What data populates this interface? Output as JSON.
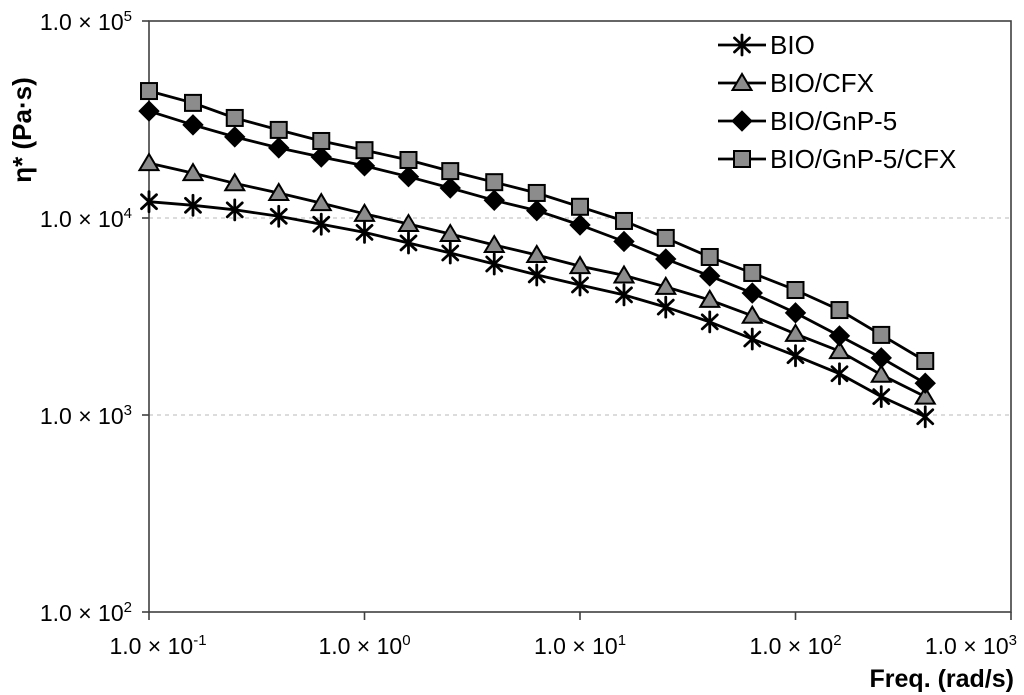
{
  "figure": {
    "background": "#ffffff"
  },
  "chart_data": {
    "type": "line",
    "title": "",
    "xlabel": "Freq. (rad/s)",
    "ylabel": "η* (Pa·s)",
    "x_scale": "log",
    "y_scale": "log",
    "xlim": [
      0.1,
      1000
    ],
    "ylim": [
      100,
      100000
    ],
    "grid": "horizontal-dashed-at-decades",
    "gridline_y_values": [
      10000,
      1000
    ],
    "x_ticks": [
      {
        "mantissa": "1.0 × 10",
        "exp": "-1",
        "value": 0.1
      },
      {
        "mantissa": "1.0 × 10",
        "exp": "0",
        "value": 1
      },
      {
        "mantissa": "1.0 × 10",
        "exp": "1",
        "value": 10
      },
      {
        "mantissa": "1.0 × 10",
        "exp": "2",
        "value": 100
      },
      {
        "mantissa": "1.0 × 10",
        "exp": "3",
        "value": 1000
      }
    ],
    "y_ticks": [
      {
        "mantissa": "1.0 × 10",
        "exp": "5",
        "value": 100000
      },
      {
        "mantissa": "1.0 × 10",
        "exp": "4",
        "value": 10000
      },
      {
        "mantissa": "1.0 × 10",
        "exp": "3",
        "value": 1000
      },
      {
        "mantissa": "1.0 × 10",
        "exp": "2",
        "value": 100
      }
    ],
    "legend": {
      "position": "top-right",
      "border": false,
      "entries": [
        "BIO",
        "BIO/CFX",
        "BIO/GnP-5",
        "BIO/GnP-5/CFX"
      ]
    },
    "x": [
      0.1,
      0.16,
      0.25,
      0.4,
      0.63,
      1,
      1.6,
      2.5,
      4,
      6.3,
      10,
      16,
      25,
      40,
      63,
      100,
      160,
      250,
      400
    ],
    "series": [
      {
        "name": "BIO",
        "marker": "asterisk",
        "marker_color": "#000000",
        "line_color": "#000000",
        "values": [
          12100,
          11600,
          11000,
          10200,
          9300,
          8450,
          7470,
          6640,
          5840,
          5140,
          4570,
          4070,
          3530,
          2970,
          2430,
          2000,
          1620,
          1240,
          980
        ]
      },
      {
        "name": "BIO/CFX",
        "marker": "triangle",
        "marker_color": "#8c8c8c",
        "line_color": "#000000",
        "values": [
          19000,
          16900,
          15000,
          13400,
          11900,
          10500,
          9320,
          8290,
          7290,
          6490,
          5700,
          5110,
          4470,
          3840,
          3190,
          2580,
          2110,
          1600,
          1240
        ]
      },
      {
        "name": "BIO/GnP-5",
        "marker": "diamond",
        "marker_color": "#000000",
        "line_color": "#000000",
        "values": [
          34900,
          29700,
          25800,
          22700,
          20400,
          18400,
          16200,
          14200,
          12300,
          10900,
          9210,
          7600,
          6190,
          5080,
          4160,
          3300,
          2520,
          1950,
          1450
        ]
      },
      {
        "name": "BIO/GnP-5/CFX",
        "marker": "square",
        "marker_color": "#8c8c8c",
        "line_color": "#000000",
        "values": [
          44100,
          38400,
          32200,
          28000,
          24600,
          22100,
          19700,
          17300,
          15200,
          13400,
          11400,
          9660,
          7920,
          6340,
          5260,
          4310,
          3410,
          2550,
          1880
        ]
      }
    ],
    "colors": {
      "series_line": "#000000",
      "marker_gray": "#8c8c8c",
      "marker_black": "#000000",
      "gridline": "#c8c8c8",
      "frame": "#404040",
      "text": "#000000"
    }
  }
}
